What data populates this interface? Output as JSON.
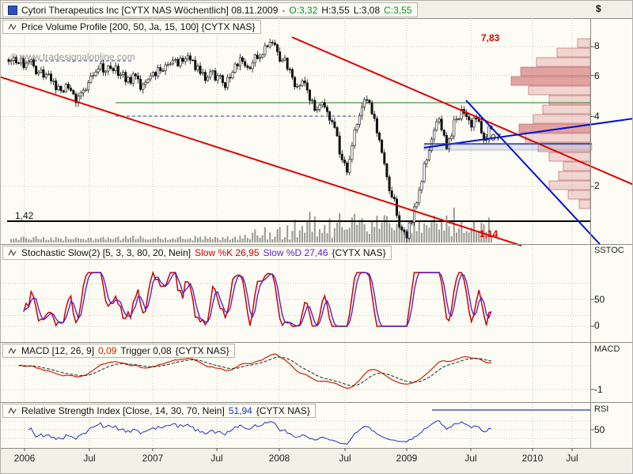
{
  "header": {
    "icon_color": "#2b50c8",
    "title": "Cytori Therapeutics Inc [CYTX NAS Wöchentlich] 08.11.2009",
    "dash": "-",
    "open": "O:3,32",
    "high": "H:3,55",
    "low": "L:3,08",
    "close": "C:3,55",
    "up_color": "#009422",
    "text_color": "#101010"
  },
  "watermark": "© www.tradesignalonline.com",
  "right_axis": {
    "currency": "$",
    "price_ticks": [
      "8",
      "6",
      "4",
      "2"
    ],
    "stoch_label": "SSTOC",
    "stoch_ticks": [
      "50",
      "0"
    ],
    "macd_label": "MACD",
    "macd_ticks": [
      "-1"
    ],
    "rsi_label": "RSI",
    "rsi_ticks": [
      "50"
    ]
  },
  "x_axis": {
    "labels": [
      "2006",
      "Jul",
      "2007",
      "Jul",
      "2008",
      "Jul",
      "2009",
      "Jul",
      "2010",
      "Jul"
    ],
    "positions": [
      30,
      112,
      192,
      273,
      352,
      435,
      513,
      594,
      672,
      722
    ]
  },
  "panels": {
    "price": {
      "title": "Price Volume Profile [200, 50, Ja, 15, 100] {CYTX NAS}"
    },
    "stoch": {
      "title": "Stochastic Slow(2) [5, 3, 3, 80, 20, Nein]",
      "k_label": "Slow %K 26,95",
      "d_label": "Slow %D 27,46",
      "suffix": "{CYTX NAS}",
      "k_color": "#cc0000",
      "d_color": "#5522cc"
    },
    "macd": {
      "title": "MACD [12, 26, 9]",
      "value": "0,09",
      "trigger_label": "Trigger 0,08",
      "suffix": "{CYTX NAS}",
      "line_color": "#cc2200"
    },
    "rsi": {
      "title": "Relative Strength Index [Close, 14, 30, 70, Nein]",
      "value": "51,94",
      "suffix": "{CYTX NAS}",
      "line_color": "#2233bb"
    }
  },
  "annotations": {
    "trend_top": {
      "text": "7,83",
      "color": "#e10000"
    },
    "support": {
      "text": "3,07",
      "color": "#222222"
    },
    "floor": {
      "text": "1,42",
      "color": "#111111"
    },
    "bottom": {
      "text": "1,14",
      "color": "#e10000"
    }
  },
  "chart_data": {
    "type": "candlestick",
    "instrument": "CYTX NAS",
    "interval": "weekly",
    "price_log_scale": true,
    "ylim": [
      1.1,
      8.6
    ],
    "x_range": [
      "2006",
      "2010"
    ],
    "closes": [
      6.9,
      7.2,
      6.8,
      6.5,
      6.9,
      6.6,
      6.2,
      5.9,
      6.1,
      5.7,
      5.4,
      5.1,
      5.3,
      5.0,
      4.9,
      5.2,
      5.6,
      6.0,
      6.4,
      6.2,
      6.6,
      6.3,
      6.0,
      6.2,
      5.9,
      6.1,
      5.8,
      5.5,
      5.8,
      6.2,
      6.5,
      6.3,
      6.7,
      7.0,
      6.6,
      6.9,
      7.3,
      7.0,
      6.6,
      6.2,
      5.9,
      6.3,
      6.0,
      5.6,
      5.9,
      6.2,
      6.6,
      6.9,
      6.5,
      6.8,
      7.1,
      7.4,
      8.0,
      8.3,
      7.6,
      7.0,
      6.4,
      5.9,
      5.4,
      5.7,
      5.2,
      4.7,
      4.3,
      4.6,
      4.2,
      3.8,
      3.3,
      2.6,
      2.3,
      3.0,
      3.7,
      4.4,
      4.7,
      4.1,
      3.4,
      2.8,
      2.2,
      1.8,
      1.5,
      1.3,
      1.2,
      1.4,
      1.7,
      2.1,
      2.6,
      3.2,
      3.8,
      3.5,
      2.9,
      3.3,
      3.9,
      4.3,
      4.0,
      3.6,
      3.9,
      3.4,
      3.2,
      3.55
    ],
    "last_ohlc": {
      "open": 3.32,
      "high": 3.55,
      "low": 3.08,
      "close": 3.55
    },
    "key_levels": {
      "resistance_top": 7.83,
      "support": 3.07,
      "floor": 1.42,
      "low": 1.14,
      "green_level": 4.6
    },
    "volume_profile": [
      [
        48,
        60,
        16,
        0
      ],
      [
        60,
        72,
        42,
        0
      ],
      [
        72,
        84,
        68,
        0
      ],
      [
        84,
        96,
        88,
        1
      ],
      [
        96,
        108,
        100,
        1
      ],
      [
        108,
        120,
        78,
        0
      ],
      [
        120,
        132,
        52,
        0
      ],
      [
        132,
        144,
        60,
        0
      ],
      [
        144,
        156,
        72,
        0
      ],
      [
        156,
        168,
        90,
        1
      ],
      [
        168,
        180,
        82,
        0
      ],
      [
        180,
        192,
        66,
        0
      ],
      [
        192,
        204,
        52,
        0
      ],
      [
        204,
        216,
        34,
        0
      ],
      [
        216,
        228,
        40,
        0
      ],
      [
        228,
        240,
        52,
        0
      ],
      [
        240,
        252,
        28,
        0
      ],
      [
        252,
        264,
        14,
        0
      ]
    ],
    "support_box": [
      535,
      182,
      212,
      7
    ],
    "trendlines": [
      {
        "name": "major-downtrend",
        "x1": -5,
        "y1": 95,
        "x2": 658,
        "y2": 310,
        "color": "#e10000",
        "w": 2,
        "layer": "over"
      },
      {
        "name": "secondary-downtrend",
        "x1": 368,
        "y1": 46,
        "x2": 800,
        "y2": 233,
        "color": "#e10000",
        "w": 2,
        "layer": "over"
      },
      {
        "name": "steep-blue-downtrend",
        "x1": 588,
        "y1": 126,
        "x2": 757,
        "y2": 308,
        "color": "#0010d8",
        "w": 2,
        "layer": "over"
      },
      {
        "name": "rising-blue-trendline",
        "x1": 535,
        "y1": 186,
        "x2": 800,
        "y2": 149,
        "color": "#0010d8",
        "w": 2,
        "layer": "over"
      },
      {
        "name": "horizontal-support",
        "x1": 535,
        "y1": 181,
        "x2": 747,
        "y2": 181,
        "color": "#39418f",
        "w": 1.5,
        "layer": "over"
      },
      {
        "name": "green-level-line",
        "x1": 145,
        "y1": 129,
        "x2": 745,
        "y2": 129,
        "color": "#1a7a1a",
        "w": 1,
        "layer": "under"
      },
      {
        "name": "floor-level-line",
        "x1": 8,
        "y1": 279,
        "x2": 745,
        "y2": 279,
        "color": "#000000",
        "w": 2,
        "layer": "under"
      },
      {
        "name": "dashed-level-4",
        "x1": 145,
        "y1": 146,
        "x2": 448,
        "y2": 146,
        "color": "#39418f",
        "w": 1,
        "dash": "4,3",
        "layer": "under"
      },
      {
        "name": "dashed-level-high",
        "x1": 35,
        "y1": 76,
        "x2": 168,
        "y2": 76,
        "color": "#39418f",
        "w": 1,
        "dash": "4,3",
        "layer": "under"
      },
      {
        "name": "rsi-level-line",
        "x1": 545,
        "y1": 518,
        "x2": 745,
        "y2": 518,
        "color": "#2233bb",
        "w": 1.2,
        "layer": "over"
      }
    ],
    "stoch": {
      "k_current": 26.95,
      "d_current": 27.46,
      "levels": [
        80,
        50,
        20,
        0
      ]
    },
    "macd": {
      "current": 0.09,
      "trigger": 0.08,
      "levels": [
        0,
        -1
      ]
    },
    "rsi": {
      "current": 51.94,
      "levels": [
        70,
        50,
        30
      ]
    }
  }
}
